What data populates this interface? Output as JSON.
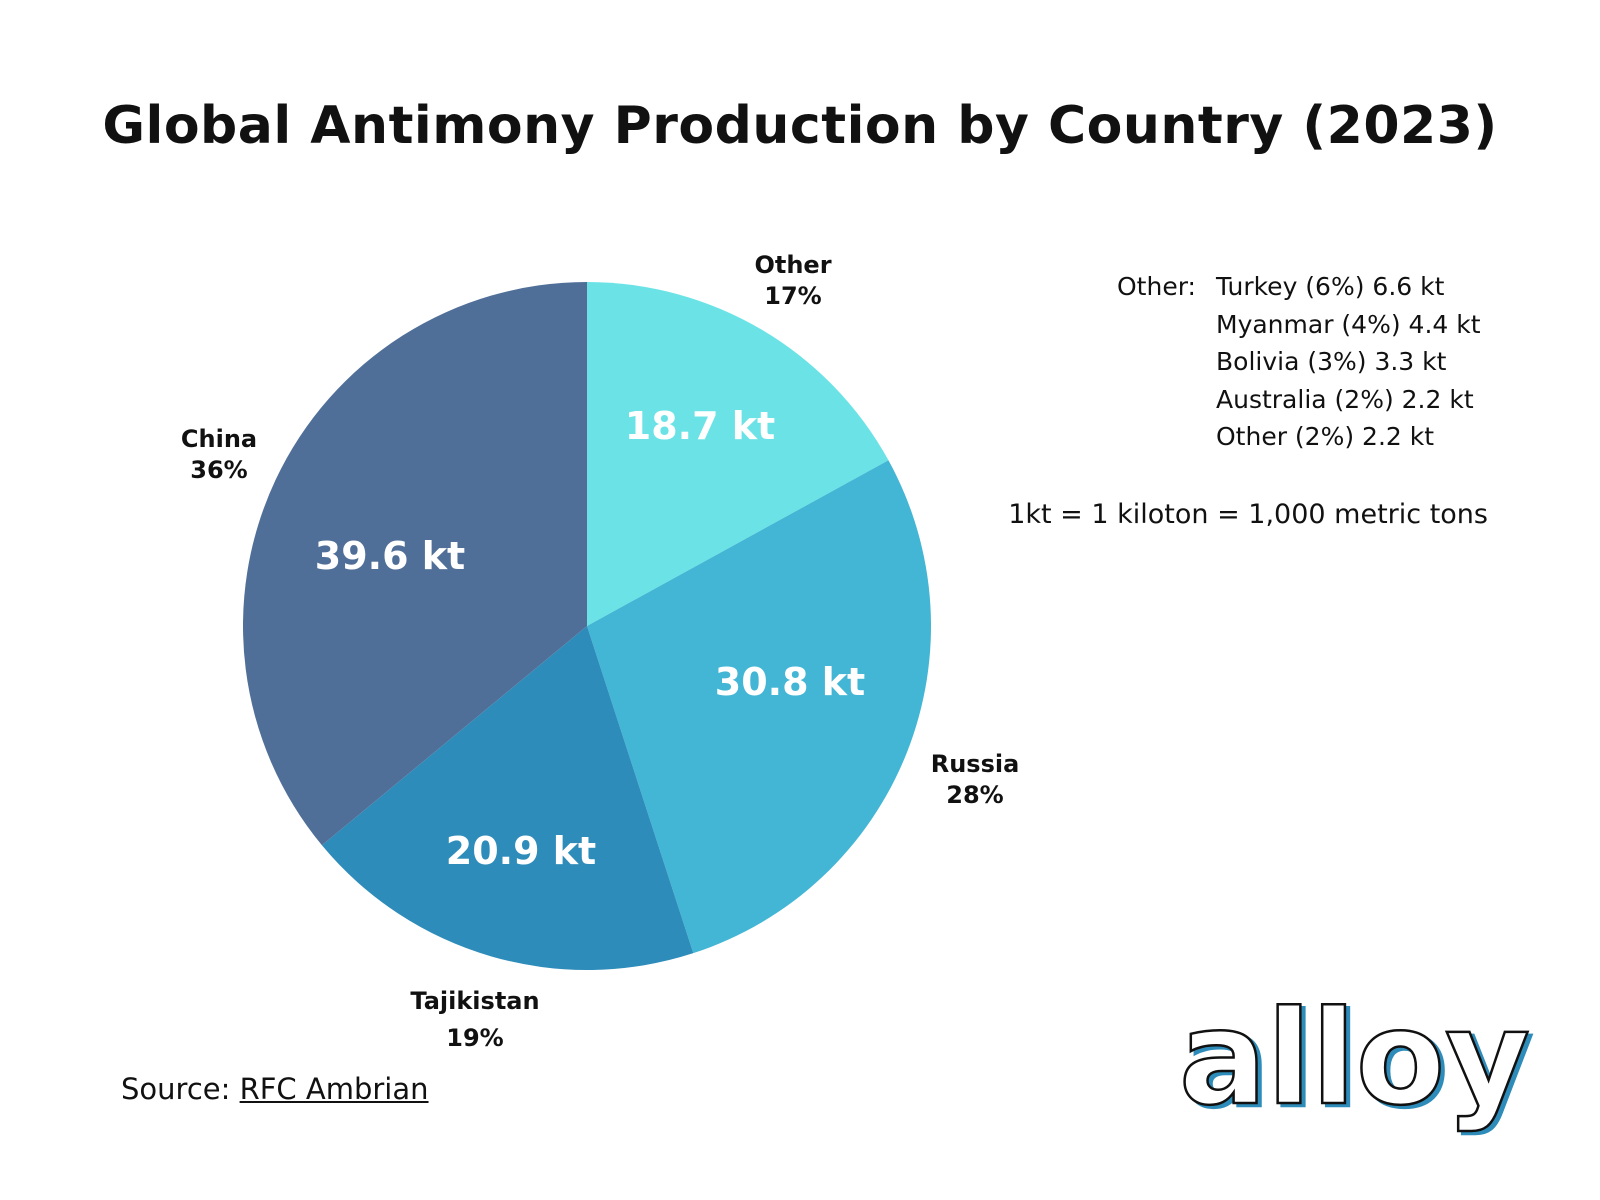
{
  "chart_data": {
    "type": "pie",
    "title": "Global Antimony Production by Country (2023)",
    "unit": "kt",
    "start": "12 o'clock, clockwise",
    "slices": [
      {
        "name": "Other",
        "percent": "17%",
        "share": 17,
        "value": "18.7 kt",
        "color": "#6BE3E6"
      },
      {
        "name": "Russia",
        "percent": "28%",
        "share": 28,
        "value": "30.8 kt",
        "color": "#42B6D4"
      },
      {
        "name": "Tajikistan",
        "percent": "19%",
        "share": 19,
        "value": "20.9 kt",
        "color": "#2E8CBA"
      },
      {
        "name": "China",
        "percent": "36%",
        "share": 36,
        "value": "39.6 kt",
        "color": "#506F98"
      }
    ]
  },
  "other_breakdown": {
    "label": "Other:",
    "items": [
      "Turkey (6%) 6.6 kt",
      "Myanmar (4%) 4.4 kt",
      "Bolivia (3%) 3.3 kt",
      "Australia (2%) 2.2 kt",
      "Other (2%) 2.2 kt"
    ]
  },
  "unit_note": "1kt = 1 kiloton = 1,000 metric tons",
  "source": {
    "prefix": "Source:",
    "link": "RFC Ambrian"
  },
  "logo": {
    "text": "alloy",
    "color": "#2E8CBA"
  }
}
